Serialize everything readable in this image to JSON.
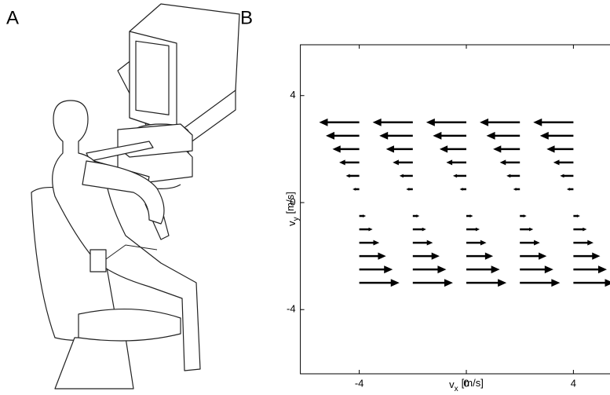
{
  "panels": {
    "a": "A",
    "b": "B"
  },
  "chart_data": {
    "type": "quiver",
    "xlabel": {
      "symbol": "v",
      "subscript": "x",
      "unit": "[m/s]"
    },
    "ylabel": {
      "symbol": "v",
      "subscript": "y",
      "unit": "[m/s]"
    },
    "xlim": [
      -6.2,
      6.2
    ],
    "ylim": [
      -6.4,
      5.9
    ],
    "xticks": [
      -4,
      0,
      4
    ],
    "yticks": [
      -4,
      0,
      4
    ],
    "color": "#000000",
    "arrows": [
      {
        "x": -4,
        "y": 3,
        "u": -1.5
      },
      {
        "x": -2,
        "y": 3,
        "u": -1.5
      },
      {
        "x": 0,
        "y": 3,
        "u": -1.5
      },
      {
        "x": 2,
        "y": 3,
        "u": -1.5
      },
      {
        "x": 4,
        "y": 3,
        "u": -1.5
      },
      {
        "x": -4,
        "y": 2.5,
        "u": -1.25
      },
      {
        "x": -2,
        "y": 2.5,
        "u": -1.25
      },
      {
        "x": 0,
        "y": 2.5,
        "u": -1.25
      },
      {
        "x": 2,
        "y": 2.5,
        "u": -1.25
      },
      {
        "x": 4,
        "y": 2.5,
        "u": -1.25
      },
      {
        "x": -4,
        "y": 2,
        "u": -1
      },
      {
        "x": -2,
        "y": 2,
        "u": -1
      },
      {
        "x": 0,
        "y": 2,
        "u": -1
      },
      {
        "x": 2,
        "y": 2,
        "u": -1
      },
      {
        "x": 4,
        "y": 2,
        "u": -1
      },
      {
        "x": -4,
        "y": 1.5,
        "u": -0.75
      },
      {
        "x": -2,
        "y": 1.5,
        "u": -0.75
      },
      {
        "x": 0,
        "y": 1.5,
        "u": -0.75
      },
      {
        "x": 2,
        "y": 1.5,
        "u": -0.75
      },
      {
        "x": 4,
        "y": 1.5,
        "u": -0.75
      },
      {
        "x": -4,
        "y": 1,
        "u": -0.5
      },
      {
        "x": -2,
        "y": 1,
        "u": -0.5
      },
      {
        "x": 0,
        "y": 1,
        "u": -0.5
      },
      {
        "x": 2,
        "y": 1,
        "u": -0.5
      },
      {
        "x": 4,
        "y": 1,
        "u": -0.5
      },
      {
        "x": -4,
        "y": 0.5,
        "u": -0.25
      },
      {
        "x": -2,
        "y": 0.5,
        "u": -0.25
      },
      {
        "x": 0,
        "y": 0.5,
        "u": -0.25
      },
      {
        "x": 2,
        "y": 0.5,
        "u": -0.25
      },
      {
        "x": 4,
        "y": 0.5,
        "u": -0.25
      },
      {
        "x": -4,
        "y": -0.5,
        "u": 0.25
      },
      {
        "x": -2,
        "y": -0.5,
        "u": 0.25
      },
      {
        "x": 0,
        "y": -0.5,
        "u": 0.25
      },
      {
        "x": 2,
        "y": -0.5,
        "u": 0.25
      },
      {
        "x": 4,
        "y": -0.5,
        "u": 0.25
      },
      {
        "x": -4,
        "y": -1,
        "u": 0.5
      },
      {
        "x": -2,
        "y": -1,
        "u": 0.5
      },
      {
        "x": 0,
        "y": -1,
        "u": 0.5
      },
      {
        "x": 2,
        "y": -1,
        "u": 0.5
      },
      {
        "x": 4,
        "y": -1,
        "u": 0.5
      },
      {
        "x": -4,
        "y": -1.5,
        "u": 0.75
      },
      {
        "x": -2,
        "y": -1.5,
        "u": 0.75
      },
      {
        "x": 0,
        "y": -1.5,
        "u": 0.75
      },
      {
        "x": 2,
        "y": -1.5,
        "u": 0.75
      },
      {
        "x": 4,
        "y": -1.5,
        "u": 0.75
      },
      {
        "x": -4,
        "y": -2,
        "u": 1
      },
      {
        "x": -2,
        "y": -2,
        "u": 1
      },
      {
        "x": 0,
        "y": -2,
        "u": 1
      },
      {
        "x": 2,
        "y": -2,
        "u": 1
      },
      {
        "x": 4,
        "y": -2,
        "u": 1
      },
      {
        "x": -4,
        "y": -2.5,
        "u": 1.25
      },
      {
        "x": -2,
        "y": -2.5,
        "u": 1.25
      },
      {
        "x": 0,
        "y": -2.5,
        "u": 1.25
      },
      {
        "x": 2,
        "y": -2.5,
        "u": 1.25
      },
      {
        "x": 4,
        "y": -2.5,
        "u": 1.25
      },
      {
        "x": -4,
        "y": -3,
        "u": 1.5
      },
      {
        "x": -2,
        "y": -3,
        "u": 1.5
      },
      {
        "x": 0,
        "y": -3,
        "u": 1.5
      },
      {
        "x": 2,
        "y": -3,
        "u": 1.5
      },
      {
        "x": 4,
        "y": -3,
        "u": 1.5
      }
    ]
  }
}
